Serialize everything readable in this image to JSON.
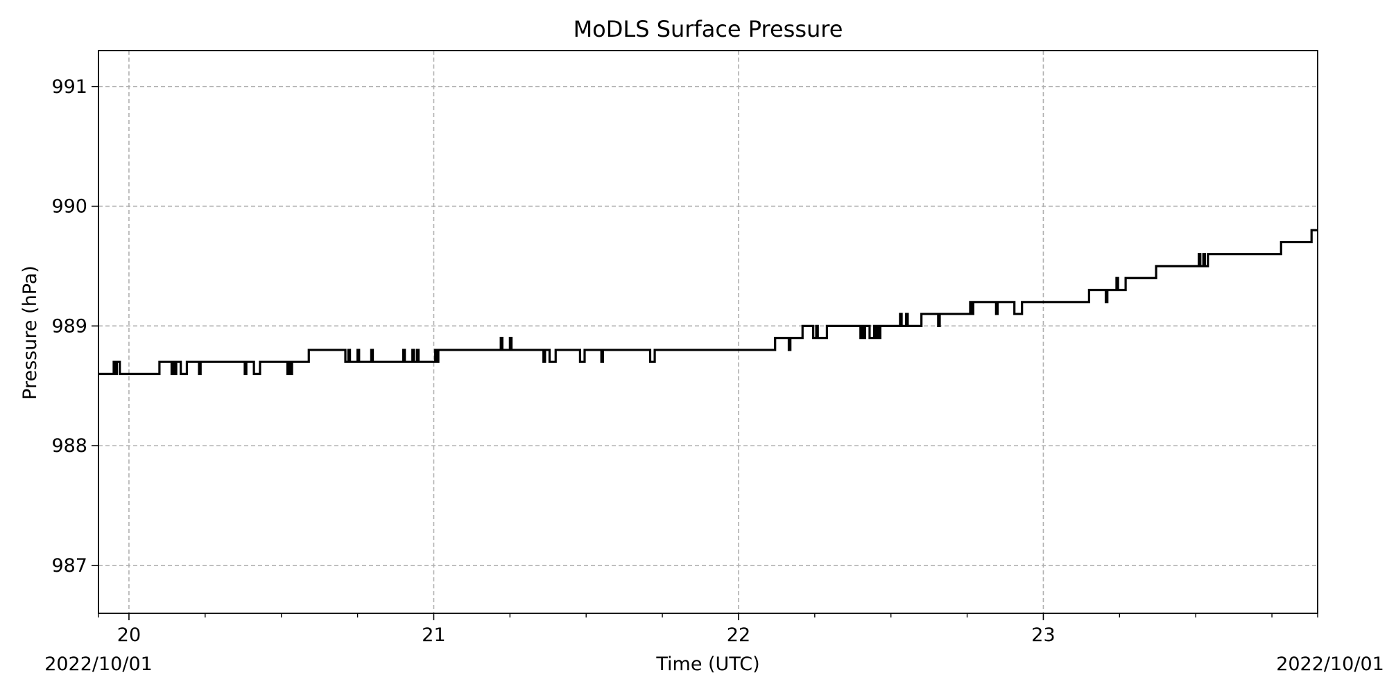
{
  "chart_data": {
    "type": "line",
    "title": "MoDLS Surface Pressure",
    "xlabel": "Time (UTC)",
    "ylabel": "Pressure (hPa)",
    "date_left": "2022/10/01",
    "date_right": "2022/10/01",
    "x_unit": "day of month (UTC)",
    "xlim": [
      19.9,
      23.9
    ],
    "ylim": [
      986.6,
      991.3
    ],
    "x_ticks": [
      20,
      21,
      22,
      23
    ],
    "x_tick_labels": [
      "20",
      "21",
      "22",
      "23"
    ],
    "x_minor_ticks": [
      20.25,
      20.5,
      20.75,
      21.25,
      21.5,
      21.75,
      22.25,
      22.5,
      22.75,
      23.25,
      23.5,
      23.75
    ],
    "y_ticks": [
      987,
      988,
      989,
      990,
      991
    ],
    "y_tick_labels": [
      "987",
      "988",
      "989",
      "990",
      "991"
    ],
    "grid": true,
    "line_color": "#000000",
    "series": [
      {
        "name": "",
        "step": "post",
        "x": [
          19.9,
          19.95,
          19.955,
          19.96,
          19.97,
          19.975,
          20.1,
          20.14,
          20.145,
          20.15,
          20.155,
          20.17,
          20.175,
          20.19,
          20.23,
          20.235,
          20.38,
          20.385,
          20.41,
          20.43,
          20.52,
          20.525,
          20.53,
          20.535,
          20.54,
          20.59,
          20.71,
          20.72,
          20.725,
          20.74,
          20.75,
          20.755,
          20.77,
          20.795,
          20.8,
          20.805,
          20.82,
          20.9,
          20.905,
          20.93,
          20.935,
          20.945,
          20.95,
          21.0,
          21.005,
          21.01,
          21.015,
          21.22,
          21.225,
          21.25,
          21.255,
          21.36,
          21.365,
          21.38,
          21.4,
          21.48,
          21.495,
          21.55,
          21.555,
          21.71,
          21.725,
          22.12,
          22.165,
          22.17,
          22.21,
          22.245,
          22.255,
          22.26,
          22.27,
          22.29,
          22.4,
          22.405,
          22.41,
          22.415,
          22.43,
          22.445,
          22.45,
          22.455,
          22.46,
          22.465,
          22.53,
          22.535,
          22.55,
          22.555,
          22.6,
          22.655,
          22.66,
          22.76,
          22.765,
          22.77,
          22.845,
          22.85,
          22.905,
          22.93,
          23.15,
          23.205,
          23.21,
          23.24,
          23.245,
          23.27,
          23.37,
          23.51,
          23.515,
          23.525,
          23.53,
          23.54,
          23.545,
          23.78,
          23.88,
          23.9
        ],
        "y": [
          988.6,
          988.7,
          988.6,
          988.7,
          988.6,
          988.6,
          988.7,
          988.6,
          988.7,
          988.6,
          988.7,
          988.6,
          988.6,
          988.7,
          988.6,
          988.7,
          988.6,
          988.7,
          988.6,
          988.7,
          988.6,
          988.7,
          988.6,
          988.7,
          988.7,
          988.8,
          988.7,
          988.8,
          988.7,
          988.7,
          988.8,
          988.7,
          988.7,
          988.8,
          988.7,
          988.7,
          988.7,
          988.8,
          988.7,
          988.8,
          988.7,
          988.8,
          988.7,
          988.7,
          988.8,
          988.7,
          988.8,
          988.9,
          988.8,
          988.9,
          988.8,
          988.7,
          988.8,
          988.7,
          988.8,
          988.7,
          988.8,
          988.7,
          988.8,
          988.7,
          988.8,
          988.9,
          988.8,
          988.9,
          989.0,
          988.9,
          989.0,
          988.9,
          988.9,
          989.0,
          988.9,
          989.0,
          988.9,
          989.0,
          988.9,
          989.0,
          988.9,
          989.0,
          988.9,
          989.0,
          989.1,
          989.0,
          989.1,
          989.0,
          989.1,
          989.0,
          989.1,
          989.2,
          989.1,
          989.2,
          989.1,
          989.2,
          989.1,
          989.2,
          989.3,
          989.2,
          989.3,
          989.4,
          989.3,
          989.4,
          989.5,
          989.6,
          989.5,
          989.6,
          989.5,
          989.6,
          989.6,
          989.7,
          989.8,
          989.8
        ]
      }
    ]
  }
}
